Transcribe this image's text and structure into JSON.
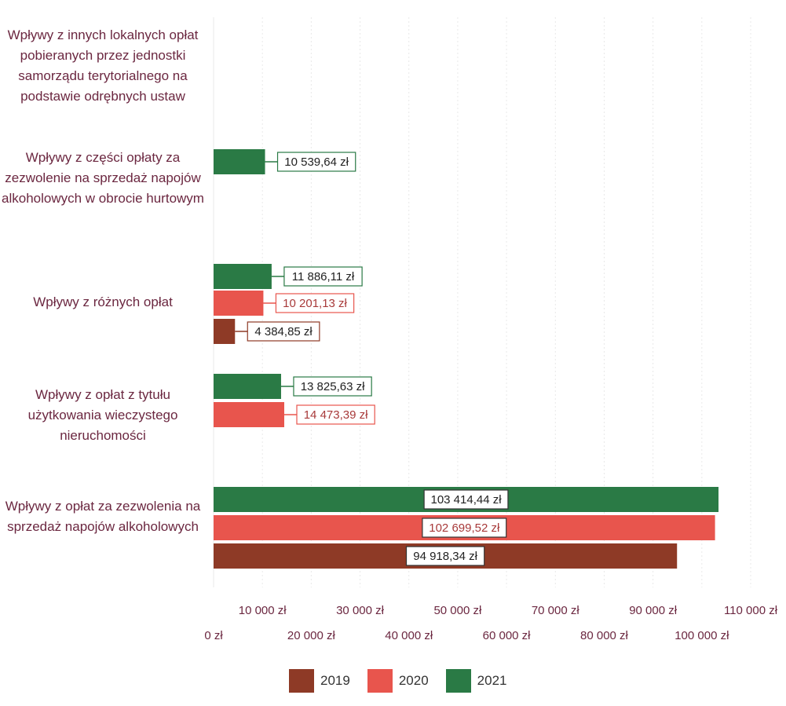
{
  "chart_data": {
    "type": "bar",
    "orientation": "horizontal",
    "categories": [
      "Wpływy z innych lokalnych opłat pobieranych przez jednostki samorządu terytorialnego na podstawie odrębnych ustaw",
      "Wpływy z części opłaty za zezwolenie na sprzedaż napojów alkoholowych w obrocie hurtowym",
      "Wpływy z różnych opłat",
      "Wpływy z opłat z tytułu użytkowania wieczystego nieruchomości",
      "Wpływy z opłat za zezwolenia na sprzedaż napojów alkoholowych"
    ],
    "series": [
      {
        "name": "2021",
        "color": "#2a7a45",
        "values": [
          null,
          10539.64,
          11886.11,
          13825.63,
          103414.44
        ],
        "labels": [
          "",
          "10 539,64 zł",
          "11 886,11 zł",
          "13 825,63 zł",
          "103 414,44 zł"
        ]
      },
      {
        "name": "2020",
        "color": "#e8554d",
        "values": [
          null,
          null,
          10201.13,
          14473.39,
          102699.52
        ],
        "labels": [
          "",
          "",
          "10 201,13 zł",
          "14 473,39 zł",
          "102 699,52 zł"
        ]
      },
      {
        "name": "2019",
        "color": "#8e3a26",
        "values": [
          null,
          null,
          4384.85,
          null,
          94918.34
        ],
        "labels": [
          "",
          "",
          "4 384,85 zł",
          "",
          "94 918,34 zł"
        ]
      }
    ],
    "xlim": [
      0,
      110000
    ],
    "x_ticks": [
      {
        "value": 0,
        "label": "0 zł"
      },
      {
        "value": 10000,
        "label": "10 000 zł"
      },
      {
        "value": 20000,
        "label": "20 000 zł"
      },
      {
        "value": 30000,
        "label": "30 000 zł"
      },
      {
        "value": 40000,
        "label": "40 000 zł"
      },
      {
        "value": 50000,
        "label": "50 000 zł"
      },
      {
        "value": 60000,
        "label": "60 000 zł"
      },
      {
        "value": 70000,
        "label": "70 000 zł"
      },
      {
        "value": 80000,
        "label": "80 000 zł"
      },
      {
        "value": 90000,
        "label": "90 000 zł"
      },
      {
        "value": 100000,
        "label": "100 000 zł"
      },
      {
        "value": 110000,
        "label": "110 000 zł"
      }
    ],
    "grid": true,
    "legend": {
      "placement": "bottom",
      "items": [
        {
          "name": "2019",
          "color": "#8e3a26"
        },
        {
          "name": "2020",
          "color": "#e8554d"
        },
        {
          "name": "2021",
          "color": "#2a7a45"
        }
      ]
    },
    "colors": {
      "category_text": "#6b2740",
      "grid": "#e8e8e8"
    }
  }
}
